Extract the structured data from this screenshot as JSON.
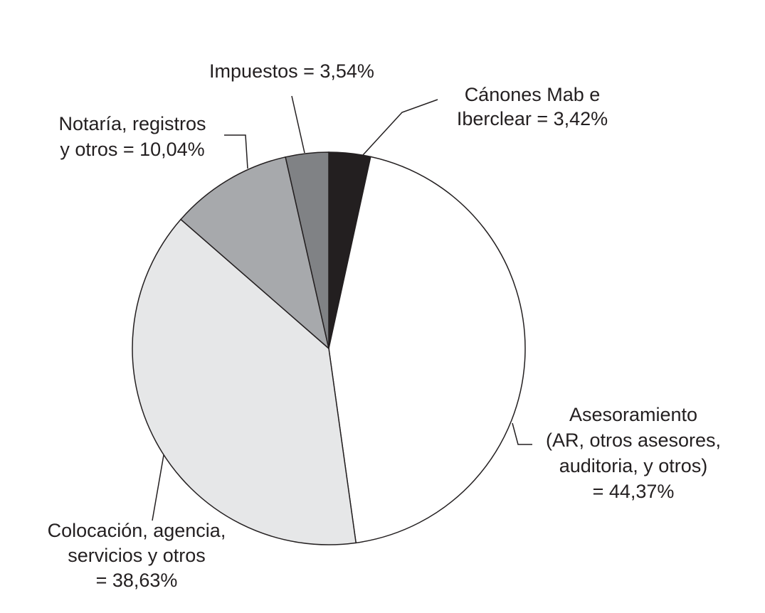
{
  "chart_data": {
    "type": "pie",
    "categories": [
      [
        "Cánones Mab e",
        "Iberclear = 3,42%"
      ],
      [
        "Asesoramiento",
        "(AR, otros asesores,",
        "auditoria, y otros)",
        "= 44,37%"
      ],
      [
        "Colocación, agencia,",
        "servicios y otros",
        "= 38,63%"
      ],
      [
        "Notaría, registros",
        "y otros = 10,04%"
      ],
      [
        "Impuestos = 3,54%"
      ]
    ],
    "values": [
      3.42,
      44.37,
      38.63,
      10.04,
      3.54
    ],
    "colors": [
      "#231f20",
      "#ffffff",
      "#e6e7e8",
      "#a7a9ac",
      "#808285"
    ]
  }
}
